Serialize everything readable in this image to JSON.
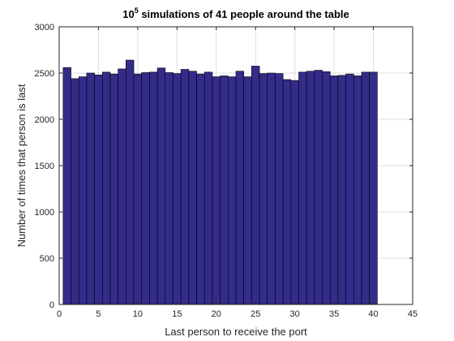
{
  "chart_data": {
    "type": "bar",
    "title_base": "10",
    "title_exponent": "5",
    "title_rest": " simulations of 41 people around the table",
    "xlabel": "Last person to receive the port",
    "ylabel": "Number of times that person is last",
    "xlim": [
      0,
      45
    ],
    "ylim": [
      0,
      3000
    ],
    "xticks": [
      0,
      5,
      10,
      15,
      20,
      25,
      30,
      35,
      40,
      45
    ],
    "yticks": [
      0,
      500,
      1000,
      1500,
      2000,
      2500,
      3000
    ],
    "grid": true,
    "x": [
      1,
      2,
      3,
      4,
      5,
      6,
      7,
      8,
      9,
      10,
      11,
      12,
      13,
      14,
      15,
      16,
      17,
      18,
      19,
      20,
      21,
      22,
      23,
      24,
      25,
      26,
      27,
      28,
      29,
      30,
      31,
      32,
      33,
      34,
      35,
      36,
      37,
      38,
      39,
      40
    ],
    "values": [
      2560,
      2440,
      2460,
      2500,
      2480,
      2510,
      2490,
      2545,
      2640,
      2490,
      2505,
      2510,
      2555,
      2505,
      2495,
      2540,
      2520,
      2490,
      2510,
      2460,
      2470,
      2460,
      2520,
      2460,
      2575,
      2495,
      2500,
      2495,
      2430,
      2420,
      2510,
      2520,
      2530,
      2515,
      2470,
      2475,
      2490,
      2470,
      2510,
      2510
    ],
    "bar_color": "#332c8a",
    "bar_edge_color": "#000000"
  }
}
